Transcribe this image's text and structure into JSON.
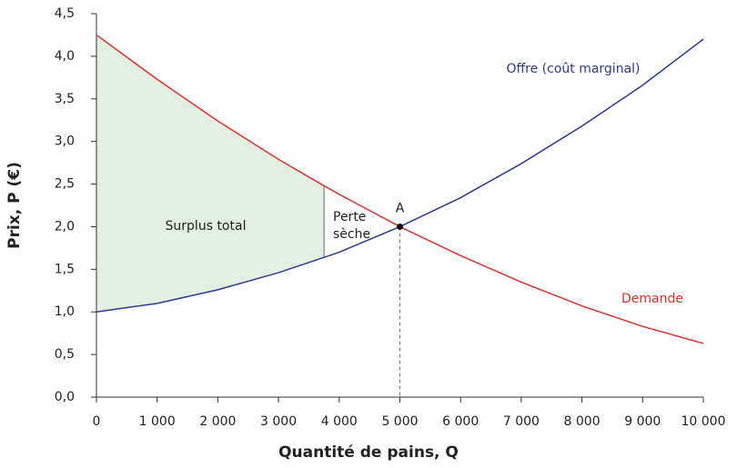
{
  "chart_data": {
    "type": "line",
    "x": [
      0,
      1000,
      2000,
      3000,
      3750,
      4000,
      5000,
      6000,
      7000,
      8000,
      9000,
      10000
    ],
    "series": [
      {
        "name": "Offre (coût marginal)",
        "color": "#2b3a96",
        "values": [
          1.0,
          1.1,
          1.26,
          1.46,
          1.64,
          1.7,
          2.0,
          2.34,
          2.74,
          3.18,
          3.66,
          4.2
        ]
      },
      {
        "name": "Demande",
        "color": "#e0302a",
        "values": [
          4.25,
          3.73,
          3.24,
          2.79,
          2.48,
          2.38,
          2.0,
          1.66,
          1.35,
          1.07,
          0.83,
          0.63
        ]
      }
    ],
    "xlabel": "Quantité de pains, Q",
    "ylabel": "Prix, P (€)",
    "xlim": [
      0,
      10000
    ],
    "ylim": [
      0,
      4.5
    ],
    "xticks": [
      0,
      {
        "value": 1000,
        "label": "1 000"
      },
      {
        "value": 2000,
        "label": "2 000"
      },
      {
        "value": 3000,
        "label": "3 000"
      },
      {
        "value": 4000,
        "label": "4 000"
      },
      {
        "value": 5000,
        "label": "5 000"
      },
      {
        "value": 6000,
        "label": "6 000"
      },
      {
        "value": 7000,
        "label": "7 000"
      },
      {
        "value": 8000,
        "label": "8 000"
      },
      {
        "value": 9000,
        "label": "9 000"
      },
      {
        "value": 10000,
        "label": "10 000"
      }
    ],
    "yticks": [
      {
        "value": 0,
        "label": "0,0"
      },
      {
        "value": 0.5,
        "label": "0,5"
      },
      {
        "value": 1,
        "label": "1,0"
      },
      {
        "value": 1.5,
        "label": "1,5"
      },
      {
        "value": 2,
        "label": "2,0"
      },
      {
        "value": 2.5,
        "label": "2,5"
      },
      {
        "value": 3,
        "label": "3,0"
      },
      {
        "value": 3.5,
        "label": "3,5"
      },
      {
        "value": 4,
        "label": "4,0"
      },
      {
        "value": 4.5,
        "label": "4,5"
      }
    ],
    "point": {
      "label": "A",
      "x": 5000,
      "y": 2
    },
    "surplus": {
      "label": "Surplus total",
      "to_x": 3750,
      "color": "#e3efe3"
    },
    "deadweight_label": [
      "Perte",
      "sèche"
    ]
  }
}
